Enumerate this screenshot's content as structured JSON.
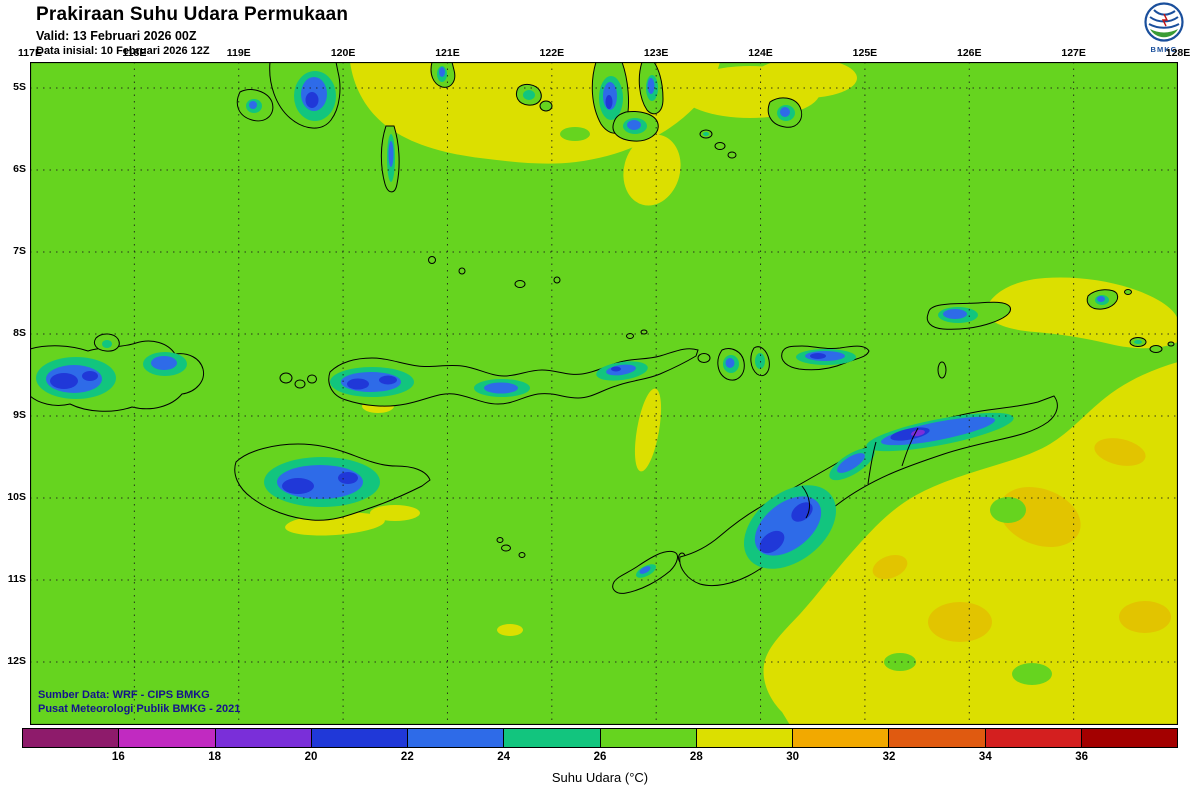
{
  "header": {
    "title": "Prakiraan Suhu Udara Permukaan",
    "valid": "Valid: 13 Februari 2026 00Z",
    "init": "Data inisial: 10 Februari 2026 12Z",
    "logo_text": "BMKG"
  },
  "map": {
    "lon_labels": [
      "117E",
      "118E",
      "119E",
      "120E",
      "121E",
      "122E",
      "123E",
      "124E",
      "125E",
      "126E",
      "127E",
      "128E"
    ],
    "lat_labels": [
      "5S",
      "6S",
      "7S",
      "8S",
      "9S",
      "10S",
      "11S",
      "12S"
    ],
    "source_line1": "Sumber Data: WRF - CIPS BMKG",
    "source_line2": "Pusat Meteorologi Publik BMKG - 2021"
  },
  "legend": {
    "title": "Suhu Udara (°C)",
    "tick_labels": [
      "16",
      "18",
      "20",
      "22",
      "24",
      "26",
      "28",
      "30",
      "32",
      "34",
      "36"
    ],
    "segment_colors": [
      "#8E1B6B",
      "#C12AC1",
      "#7A2FD9",
      "#2038D8",
      "#2E6BE8",
      "#12C57E",
      "#66D41F",
      "#DCDF00",
      "#F2A900",
      "#E05A10",
      "#D41F1F",
      "#A30000"
    ]
  },
  "colors": {
    "sea_green": "#66D41F",
    "yellow": "#DCDF00",
    "deep_yellow": "#E2C400",
    "teal": "#12C57E",
    "blue": "#2E6BE8",
    "dark_blue": "#2038D8",
    "purple": "#7A2FD9",
    "source_text": "#14148C",
    "logo_blue": "#1A4F9C",
    "logo_green": "#3A9B35"
  }
}
